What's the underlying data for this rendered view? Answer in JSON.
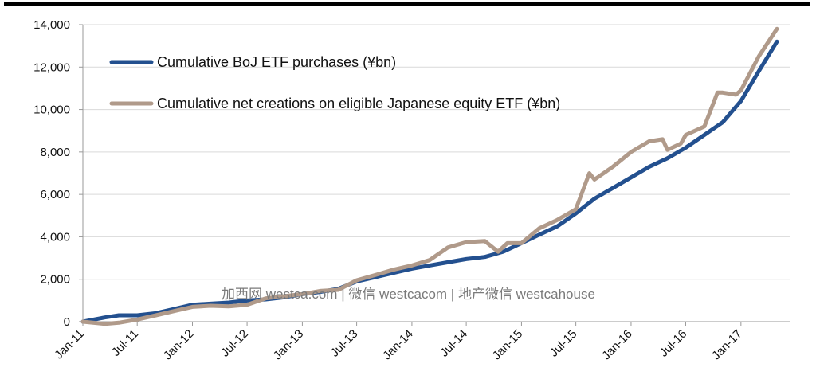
{
  "chart_data": {
    "type": "line",
    "ylim": [
      0,
      14000
    ],
    "y_ticks": [
      "0",
      "2,000",
      "4,000",
      "6,000",
      "8,000",
      "10,000",
      "12,000",
      "14,000"
    ],
    "y_tick_values": [
      0,
      2000,
      4000,
      6000,
      8000,
      10000,
      12000,
      14000
    ],
    "x_ticks": [
      "Jan-11",
      "Jul-11",
      "Jan-12",
      "Jul-12",
      "Jan-13",
      "Jul-13",
      "Jan-14",
      "Jul-14",
      "Jan-15",
      "Jul-15",
      "Jan-16",
      "Jul-16",
      "Jan-17"
    ],
    "x_tick_dates": [
      "2011-01-01",
      "2011-07-01",
      "2012-01-01",
      "2012-07-01",
      "2013-01-01",
      "2013-07-01",
      "2014-01-01",
      "2014-07-01",
      "2015-01-01",
      "2015-07-01",
      "2016-01-01",
      "2016-07-01",
      "2017-01-01"
    ],
    "grid": true,
    "legend_position": "top-left",
    "series": [
      {
        "name": "Cumulative BoJ ETF purchases (¥bn)",
        "color": "#23508f",
        "x": [
          "2011-01-01",
          "2011-03-15",
          "2011-05-01",
          "2011-07-01",
          "2011-09-01",
          "2011-11-01",
          "2012-01-01",
          "2012-03-01",
          "2012-05-01",
          "2012-07-01",
          "2012-09-01",
          "2012-11-01",
          "2013-01-01",
          "2013-03-01",
          "2013-05-01",
          "2013-07-01",
          "2013-09-01",
          "2013-11-01",
          "2014-01-01",
          "2014-03-01",
          "2014-05-01",
          "2014-07-01",
          "2014-09-01",
          "2014-11-01",
          "2015-01-01",
          "2015-03-01",
          "2015-05-01",
          "2015-07-01",
          "2015-09-01",
          "2015-11-01",
          "2016-01-01",
          "2016-03-01",
          "2016-05-01",
          "2016-07-01",
          "2016-09-01",
          "2016-11-01",
          "2017-01-01",
          "2017-03-01",
          "2017-05-01"
        ],
        "values": [
          0,
          200,
          300,
          300,
          400,
          600,
          800,
          850,
          900,
          1000,
          1050,
          1150,
          1300,
          1400,
          1550,
          1900,
          2100,
          2300,
          2500,
          2650,
          2800,
          2950,
          3050,
          3300,
          3700,
          4100,
          4500,
          5100,
          5800,
          6300,
          6800,
          7300,
          7700,
          8200,
          8800,
          9400,
          10400,
          11800,
          13200
        ]
      },
      {
        "name": "Cumulative net creations on eligible Japanese equity ETF (¥bn)",
        "color": "#b09a8a",
        "x": [
          "2011-01-01",
          "2011-03-15",
          "2011-05-01",
          "2011-07-01",
          "2011-09-01",
          "2011-11-01",
          "2012-01-01",
          "2012-03-01",
          "2012-05-01",
          "2012-07-01",
          "2012-09-01",
          "2012-11-01",
          "2013-01-01",
          "2013-03-01",
          "2013-05-01",
          "2013-07-01",
          "2013-09-01",
          "2013-11-01",
          "2014-01-01",
          "2014-03-01",
          "2014-05-01",
          "2014-07-01",
          "2014-09-01",
          "2014-10-15",
          "2014-11-15",
          "2015-01-01",
          "2015-03-01",
          "2015-05-01",
          "2015-07-01",
          "2015-08-15",
          "2015-09-01",
          "2015-11-01",
          "2016-01-01",
          "2016-03-01",
          "2016-04-15",
          "2016-05-01",
          "2016-06-15",
          "2016-07-01",
          "2016-09-01",
          "2016-10-15",
          "2016-11-01",
          "2016-12-15",
          "2017-01-01",
          "2017-03-01",
          "2017-05-01"
        ],
        "values": [
          0,
          -100,
          -50,
          100,
          300,
          500,
          700,
          750,
          720,
          800,
          1100,
          1200,
          1300,
          1450,
          1500,
          1950,
          2200,
          2450,
          2650,
          2900,
          3500,
          3750,
          3800,
          3300,
          3700,
          3700,
          4400,
          4800,
          5300,
          7000,
          6700,
          7300,
          8000,
          8500,
          8600,
          8100,
          8400,
          8800,
          9200,
          10800,
          10800,
          10700,
          10900,
          12500,
          13800
        ]
      }
    ]
  },
  "watermark": "加西网 westca.com | 微信 westcacom | 地产微信 westcahouse",
  "colors": {
    "top_rule": "#000000",
    "grid": "#d9d9d9",
    "axis": "#9a9a9a"
  }
}
